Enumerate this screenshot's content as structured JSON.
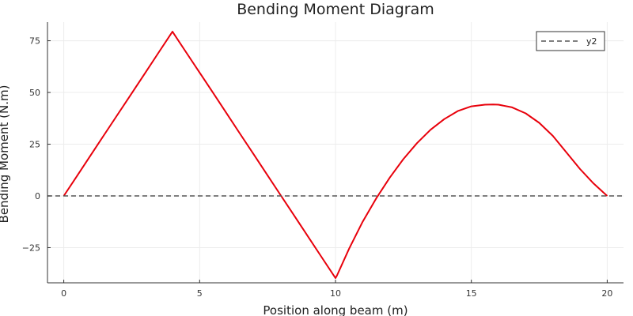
{
  "chart_data": {
    "type": "line",
    "title": "Bending Moment Diagram",
    "xlabel": "Position along beam (m)",
    "ylabel": "Bending Moment (N.m)",
    "xlim": [
      -0.6,
      20.6
    ],
    "ylim": [
      -42,
      84
    ],
    "xticks": [
      0,
      5,
      10,
      15,
      20
    ],
    "yticks": [
      -25,
      0,
      25,
      50,
      75
    ],
    "grid": true,
    "legend": {
      "placement": "top-right",
      "entries": [
        "y2"
      ]
    },
    "series": [
      {
        "color": "#e8000b",
        "style": "solid",
        "x": [
          0,
          0.5,
          1,
          1.5,
          2,
          2.5,
          3,
          3.5,
          3.95,
          4.0,
          4.05,
          4.5,
          5,
          5.5,
          6,
          6.5,
          7,
          7.5,
          8,
          8.5,
          9,
          9.5,
          9.95,
          10.0,
          10.05,
          10.5,
          11,
          11.5,
          12,
          12.5,
          13,
          13.5,
          14,
          14.5,
          15,
          15.5,
          15.8,
          16,
          16.5,
          17,
          17.5,
          18,
          18.5,
          19,
          19.5,
          20
        ],
        "y": [
          0,
          9.9,
          19.8,
          29.8,
          39.7,
          49.6,
          59.5,
          69.5,
          78.4,
          79.4,
          78.4,
          69.5,
          59.6,
          49.7,
          39.8,
          29.8,
          19.9,
          9.9,
          0,
          -9.9,
          -19.9,
          -29.8,
          -38.7,
          -39.7,
          -38.6,
          -25.5,
          -12.5,
          -1.2,
          8.9,
          17.8,
          25.5,
          32.0,
          37.1,
          41.0,
          43.3,
          44.1,
          44.2,
          44.1,
          42.8,
          39.9,
          35.3,
          29.0,
          21.0,
          13.0,
          6.0,
          0
        ]
      },
      {
        "name": "y2",
        "color": "#555555",
        "style": "dashed",
        "x": [
          -0.6,
          20.6
        ],
        "y": [
          0,
          0
        ]
      }
    ]
  }
}
